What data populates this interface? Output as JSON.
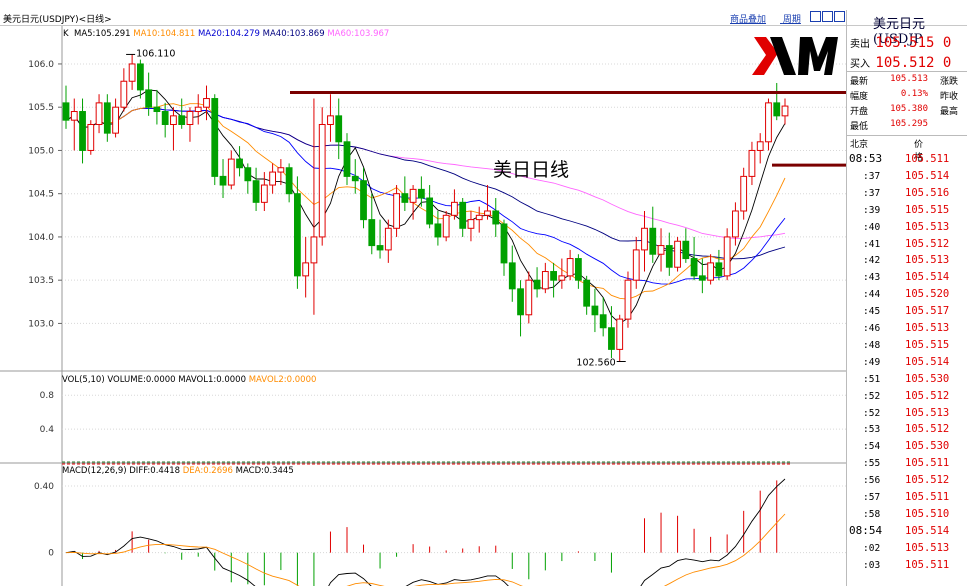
{
  "window_title": "美元日元(USDJPY)<日线>",
  "top_links": [
    "商品叠加",
    "周期"
  ],
  "overlay_label": "美日日线",
  "price_legend": {
    "k": "K",
    "ma5": "MA5:105.291",
    "ma10": "MA10:104.811",
    "ma20": "MA20:104.279",
    "ma40": "MA40:103.869",
    "ma60": "MA60:103.967"
  },
  "vol_legend": {
    "vol": "VOL(5,10)",
    "volume": "VOLUME:0.0000",
    "mavol1": "MAVOL1:0.0000",
    "mavol2": "MAVOL2:0.0000"
  },
  "macd_legend": {
    "macd": "MACD(12,26,9)",
    "diff": "DIFF:0.4418",
    "dea": "DEA:0.2696",
    "macdv": "MACD:0.3445"
  },
  "colors": {
    "up": "#e00000",
    "down": "#00a000",
    "ma5": "#000000",
    "ma10": "#ff8c00",
    "ma20": "#0000ff",
    "ma40": "#000080",
    "ma60": "#ff66ff",
    "resistance": "#7a0000"
  },
  "chart_data": [
    {
      "type": "candlestick",
      "title": "美元日元(USDJPY)<日线>",
      "yticks": [
        "106.0",
        "105.5",
        "105.0",
        "104.5",
        "104.0",
        "103.5",
        "103.0"
      ],
      "ylim": [
        102.45,
        106.3
      ],
      "annotations": {
        "high_label": "106.110",
        "low_label": "102.560",
        "high_value": 106.11,
        "low_value": 102.56
      },
      "resistance_level": 105.67,
      "current_level": 104.83,
      "candles": [
        [
          105.55,
          105.75,
          105.25,
          105.35
        ],
        [
          105.35,
          105.6,
          105.0,
          105.45
        ],
        [
          105.45,
          105.6,
          104.85,
          105.0
        ],
        [
          105.0,
          105.35,
          104.95,
          105.3
        ],
        [
          105.3,
          105.65,
          105.2,
          105.55
        ],
        [
          105.55,
          105.65,
          105.1,
          105.2
        ],
        [
          105.2,
          105.6,
          105.15,
          105.5
        ],
        [
          105.5,
          105.95,
          105.45,
          105.8
        ],
        [
          105.8,
          106.11,
          105.7,
          106.0
        ],
        [
          106.0,
          106.05,
          105.6,
          105.7
        ],
        [
          105.7,
          105.9,
          105.4,
          105.5
        ],
        [
          105.5,
          105.7,
          105.3,
          105.45
        ],
        [
          105.45,
          105.55,
          105.15,
          105.3
        ],
        [
          105.3,
          105.5,
          105.0,
          105.4
        ],
        [
          105.4,
          105.6,
          105.25,
          105.3
        ],
        [
          105.3,
          105.5,
          105.1,
          105.45
        ],
        [
          105.45,
          105.65,
          105.3,
          105.5
        ],
        [
          105.5,
          105.75,
          105.35,
          105.6
        ],
        [
          105.6,
          105.65,
          104.6,
          104.7
        ],
        [
          104.7,
          104.9,
          104.45,
          104.6
        ],
        [
          104.6,
          105.0,
          104.55,
          104.9
        ],
        [
          104.9,
          105.05,
          104.7,
          104.8
        ],
        [
          104.8,
          104.85,
          104.5,
          104.65
        ],
        [
          104.65,
          104.8,
          104.3,
          104.4
        ],
        [
          104.4,
          104.75,
          104.3,
          104.6
        ],
        [
          104.6,
          104.85,
          104.5,
          104.75
        ],
        [
          104.75,
          104.9,
          104.6,
          104.8
        ],
        [
          104.8,
          104.85,
          104.4,
          104.5
        ],
        [
          104.5,
          104.7,
          103.4,
          103.55
        ],
        [
          103.55,
          104.0,
          103.3,
          103.7
        ],
        [
          103.7,
          105.6,
          103.1,
          104.0
        ],
        [
          104.0,
          105.5,
          103.9,
          105.3
        ],
        [
          105.3,
          105.65,
          105.1,
          105.4
        ],
        [
          105.4,
          105.6,
          104.9,
          105.1
        ],
        [
          105.1,
          105.2,
          104.6,
          104.7
        ],
        [
          104.7,
          104.9,
          104.5,
          104.65
        ],
        [
          104.65,
          104.8,
          104.1,
          104.2
        ],
        [
          104.2,
          104.5,
          103.8,
          103.9
        ],
        [
          103.9,
          104.2,
          103.75,
          103.85
        ],
        [
          103.85,
          104.2,
          103.7,
          104.1
        ],
        [
          104.1,
          104.6,
          104.0,
          104.5
        ],
        [
          104.5,
          104.7,
          104.3,
          104.4
        ],
        [
          104.4,
          104.6,
          104.2,
          104.55
        ],
        [
          104.55,
          104.7,
          104.35,
          104.45
        ],
        [
          104.45,
          104.6,
          104.1,
          104.15
        ],
        [
          104.15,
          104.3,
          103.9,
          104.0
        ],
        [
          104.0,
          104.3,
          103.95,
          104.25
        ],
        [
          104.25,
          104.55,
          104.2,
          104.4
        ],
        [
          104.4,
          104.45,
          104.0,
          104.1
        ],
        [
          104.1,
          104.3,
          103.95,
          104.2
        ],
        [
          104.2,
          104.35,
          104.05,
          104.25
        ],
        [
          104.25,
          104.6,
          104.2,
          104.3
        ],
        [
          104.3,
          104.45,
          104.0,
          104.15
        ],
        [
          104.15,
          104.2,
          103.55,
          103.7
        ],
        [
          103.7,
          103.9,
          103.25,
          103.4
        ],
        [
          103.4,
          103.5,
          102.85,
          103.1
        ],
        [
          103.1,
          103.6,
          103.0,
          103.5
        ],
        [
          103.5,
          103.65,
          103.3,
          103.4
        ],
        [
          103.4,
          103.7,
          103.35,
          103.6
        ],
        [
          103.6,
          103.7,
          103.3,
          103.5
        ],
        [
          103.5,
          103.75,
          103.4,
          103.55
        ],
        [
          103.55,
          103.85,
          103.5,
          103.75
        ],
        [
          103.75,
          103.8,
          103.4,
          103.5
        ],
        [
          103.5,
          103.55,
          103.1,
          103.2
        ],
        [
          103.2,
          103.4,
          102.9,
          103.1
        ],
        [
          103.1,
          103.3,
          102.85,
          102.95
        ],
        [
          102.95,
          103.2,
          102.6,
          102.7
        ],
        [
          102.7,
          103.1,
          102.56,
          103.05
        ],
        [
          103.05,
          103.6,
          102.95,
          103.5
        ],
        [
          103.5,
          104.0,
          103.4,
          103.85
        ],
        [
          103.85,
          104.3,
          103.6,
          104.1
        ],
        [
          104.1,
          104.35,
          103.7,
          103.8
        ],
        [
          103.8,
          104.1,
          103.6,
          103.9
        ],
        [
          103.9,
          104.05,
          103.55,
          103.65
        ],
        [
          103.65,
          104.0,
          103.6,
          103.95
        ],
        [
          103.95,
          104.1,
          103.7,
          103.75
        ],
        [
          103.75,
          104.0,
          103.5,
          103.55
        ],
        [
          103.55,
          103.75,
          103.35,
          103.5
        ],
        [
          103.5,
          103.8,
          103.45,
          103.7
        ],
        [
          103.7,
          103.85,
          103.5,
          103.55
        ],
        [
          103.55,
          104.1,
          103.5,
          104.0
        ],
        [
          104.0,
          104.4,
          103.9,
          104.3
        ],
        [
          104.3,
          104.8,
          104.2,
          104.7
        ],
        [
          104.7,
          105.1,
          104.6,
          105.0
        ],
        [
          105.0,
          105.2,
          104.85,
          105.1
        ],
        [
          105.1,
          105.6,
          105.0,
          105.55
        ],
        [
          105.55,
          105.78,
          105.35,
          105.4
        ],
        [
          105.4,
          105.6,
          105.3,
          105.513
        ]
      ]
    },
    {
      "type": "line",
      "title": "VOL(5,10)",
      "yticks": [
        "0.8",
        "0.4"
      ],
      "ylim": [
        0,
        1.05
      ],
      "series": [
        {
          "name": "VOLUME",
          "value": 0.0
        },
        {
          "name": "MAVOL1",
          "value": 0.0
        },
        {
          "name": "MAVOL2",
          "value": 0.0
        }
      ]
    },
    {
      "type": "bar",
      "title": "MACD(12,26,9)",
      "yticks": [
        "0.40",
        "0"
      ],
      "ylim": [
        -0.2,
        0.52
      ],
      "series": [
        {
          "name": "DIFF",
          "value": 0.4418
        },
        {
          "name": "DEA",
          "value": 0.2696
        },
        {
          "name": "MACD",
          "value": 0.3445
        }
      ]
    }
  ],
  "right_panel": {
    "title": "美元日元(USDJP",
    "sell_label": "卖出",
    "sell_price": "105.515 0",
    "buy_label": "买入",
    "buy_price": "105.512 0",
    "stats": [
      {
        "l1": "最新",
        "v1": "105.513",
        "l2": "涨跌"
      },
      {
        "l1": "幅度",
        "v1": "0.13%",
        "l2": "昨收"
      },
      {
        "l1": "开盘",
        "v1": "105.380",
        "l2": "最高"
      },
      {
        "l1": "最低",
        "v1": "105.295",
        "l2": ""
      }
    ],
    "col_time": "北京",
    "col_price": "价格",
    "ticks": [
      {
        "t": "08:53",
        "p": "105.511"
      },
      {
        "t": ":37",
        "p": "105.514"
      },
      {
        "t": ":37",
        "p": "105.516"
      },
      {
        "t": ":39",
        "p": "105.515"
      },
      {
        "t": ":40",
        "p": "105.513"
      },
      {
        "t": ":41",
        "p": "105.512"
      },
      {
        "t": ":42",
        "p": "105.513"
      },
      {
        "t": ":43",
        "p": "105.514"
      },
      {
        "t": ":44",
        "p": "105.520"
      },
      {
        "t": ":45",
        "p": "105.517"
      },
      {
        "t": ":46",
        "p": "105.513"
      },
      {
        "t": ":48",
        "p": "105.515"
      },
      {
        "t": ":49",
        "p": "105.514"
      },
      {
        "t": ":51",
        "p": "105.530"
      },
      {
        "t": ":52",
        "p": "105.512"
      },
      {
        "t": ":52",
        "p": "105.513"
      },
      {
        "t": ":53",
        "p": "105.512"
      },
      {
        "t": ":54",
        "p": "105.530"
      },
      {
        "t": ":55",
        "p": "105.511"
      },
      {
        "t": ":56",
        "p": "105.512"
      },
      {
        "t": ":57",
        "p": "105.511"
      },
      {
        "t": ":58",
        "p": "105.510"
      },
      {
        "t": "08:54",
        "p": "105.514"
      },
      {
        "t": ":02",
        "p": "105.513"
      },
      {
        "t": ":03",
        "p": "105.511"
      }
    ]
  }
}
